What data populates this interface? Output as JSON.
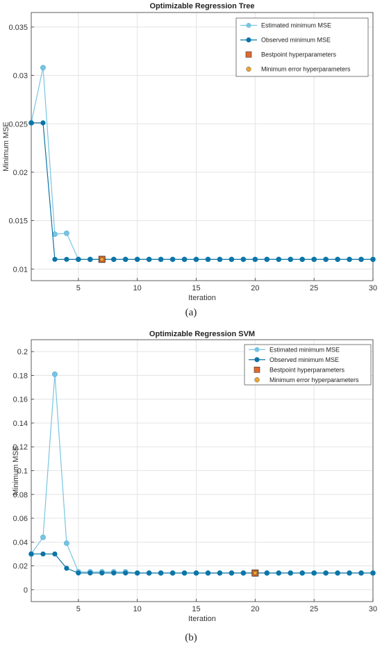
{
  "chart_data": [
    {
      "type": "line",
      "panel_label": "(a)",
      "title": "Optimizable Regression Tree",
      "xlabel": "Iteration",
      "ylabel": "Minimum MSE",
      "xlim": [
        1,
        30
      ],
      "ylim": [
        0.0088,
        0.0365
      ],
      "xticks": [
        5,
        10,
        15,
        20,
        25,
        30
      ],
      "yticks": [
        0.01,
        0.015,
        0.02,
        0.025,
        0.03,
        0.035
      ],
      "ytick_labels": [
        "0.01",
        "0.015",
        "0.02",
        "0.025",
        "0.03",
        "0.035"
      ],
      "grid": true,
      "legend_position": "top-right",
      "legend": [
        "Estimated minimum MSE",
        "Observed minimum MSE",
        "Bestpoint hyperparameters",
        "Minimum error hyperparameters"
      ],
      "x": [
        1,
        2,
        3,
        4,
        5,
        6,
        7,
        8,
        9,
        10,
        11,
        12,
        13,
        14,
        15,
        16,
        17,
        18,
        19,
        20,
        21,
        22,
        23,
        24,
        25,
        26,
        27,
        28,
        29,
        30
      ],
      "series": [
        {
          "name": "Estimated minimum MSE",
          "color": "#79c4e2",
          "values": [
            0.0251,
            0.0308,
            0.0136,
            0.0137,
            0.011,
            0.011,
            0.011,
            0.011,
            0.011,
            0.011,
            0.011,
            0.011,
            0.011,
            0.011,
            0.011,
            0.011,
            0.011,
            0.011,
            0.011,
            0.011,
            0.011,
            0.011,
            0.011,
            0.011,
            0.011,
            0.011,
            0.011,
            0.011,
            0.011,
            0.011
          ]
        },
        {
          "name": "Observed minimum MSE",
          "color": "#0c74a6",
          "values": [
            0.0251,
            0.0251,
            0.011,
            0.011,
            0.011,
            0.011,
            0.011,
            0.011,
            0.011,
            0.011,
            0.011,
            0.011,
            0.011,
            0.011,
            0.011,
            0.011,
            0.011,
            0.011,
            0.011,
            0.011,
            0.011,
            0.011,
            0.011,
            0.011,
            0.011,
            0.011,
            0.011,
            0.011,
            0.011,
            0.011
          ]
        }
      ],
      "bestpoint": {
        "x": 7,
        "y": 0.011,
        "color": "#e06a2c"
      },
      "min_error_point": {
        "x": 7,
        "y": 0.011,
        "color": "#eda530"
      }
    },
    {
      "type": "line",
      "panel_label": "(b)",
      "title": "Optimizable Regression SVM",
      "xlabel": "Iteration",
      "ylabel": "Minimum MSE",
      "xlim": [
        1,
        30
      ],
      "ylim": [
        -0.01,
        0.21
      ],
      "xticks": [
        5,
        10,
        15,
        20,
        25,
        30
      ],
      "yticks": [
        0,
        0.02,
        0.04,
        0.06,
        0.08,
        0.1,
        0.12,
        0.14,
        0.16,
        0.18,
        0.2
      ],
      "ytick_labels": [
        "0",
        "0.02",
        "0.04",
        "0.06",
        "0.08",
        "0.1",
        "0.12",
        "0.14",
        "0.16",
        "0.18",
        "0.2"
      ],
      "grid": true,
      "legend_position": "top-right",
      "legend": [
        "Estimated minimum MSE",
        "Observed minimum MSE",
        "Bestpoint hyperparameters",
        "Minimum error hyperparameters"
      ],
      "x": [
        1,
        2,
        3,
        4,
        5,
        6,
        7,
        8,
        9,
        10,
        11,
        12,
        13,
        14,
        15,
        16,
        17,
        18,
        19,
        20,
        21,
        22,
        23,
        24,
        25,
        26,
        27,
        28,
        29,
        30
      ],
      "series": [
        {
          "name": "Estimated minimum MSE",
          "color": "#79c4e2",
          "values": [
            0.03,
            0.044,
            0.181,
            0.039,
            0.015,
            0.015,
            0.015,
            0.015,
            0.015,
            0.014,
            0.014,
            0.014,
            0.014,
            0.014,
            0.014,
            0.014,
            0.014,
            0.014,
            0.014,
            0.014,
            0.014,
            0.014,
            0.014,
            0.014,
            0.014,
            0.014,
            0.014,
            0.014,
            0.014,
            0.014
          ]
        },
        {
          "name": "Observed minimum MSE",
          "color": "#0c74a6",
          "values": [
            0.03,
            0.03,
            0.03,
            0.018,
            0.014,
            0.014,
            0.014,
            0.014,
            0.014,
            0.014,
            0.014,
            0.014,
            0.014,
            0.014,
            0.014,
            0.014,
            0.014,
            0.014,
            0.014,
            0.014,
            0.014,
            0.014,
            0.014,
            0.014,
            0.014,
            0.014,
            0.014,
            0.014,
            0.014,
            0.014
          ]
        }
      ],
      "bestpoint": {
        "x": 20,
        "y": 0.014,
        "color": "#e06a2c"
      },
      "min_error_point": {
        "x": 20,
        "y": 0.014,
        "color": "#eda530"
      }
    }
  ]
}
